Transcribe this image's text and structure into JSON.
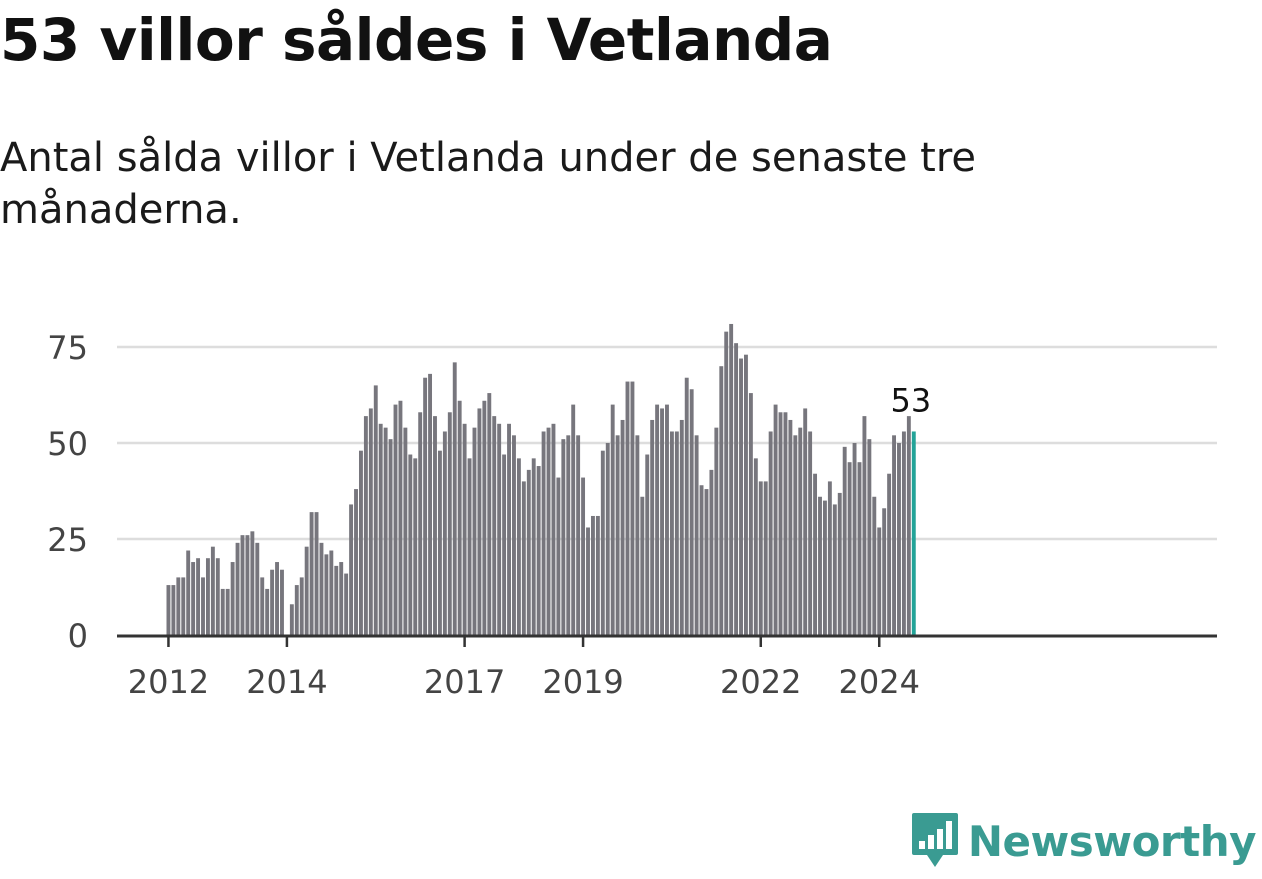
{
  "title": "53 villor såldes i Vetlanda",
  "subtitle": "Antal sålda villor i Vetlanda under de senaste tre månaderna.",
  "brand": {
    "name": "Newsworthy",
    "logo_icon": "newsworthy-bar-chart-icon",
    "color": "#3a9b92"
  },
  "chart_data": {
    "type": "bar",
    "title": "",
    "xlabel": "",
    "ylabel": "",
    "ylim": [
      0,
      80
    ],
    "y_ticks": [
      "0",
      "25",
      "50",
      "75"
    ],
    "grid": true,
    "x_ticks": [
      "2012",
      "2014",
      "2017",
      "2019",
      "2022",
      "2024"
    ],
    "colors": {
      "bar": "#77767d",
      "highlight": "#23a398",
      "grid": "#dddddd",
      "axis": "#333333"
    },
    "highlight_label": "53",
    "categories": [
      "2012-01",
      "2012-02",
      "2012-03",
      "2012-04",
      "2012-05",
      "2012-06",
      "2012-07",
      "2012-08",
      "2012-09",
      "2012-10",
      "2012-11",
      "2012-12",
      "2013-01",
      "2013-02",
      "2013-03",
      "2013-04",
      "2013-05",
      "2013-06",
      "2013-07",
      "2013-08",
      "2013-09",
      "2013-10",
      "2013-11",
      "2013-12",
      "2014-01",
      "2014-02",
      "2014-03",
      "2014-04",
      "2014-05",
      "2014-06",
      "2014-07",
      "2014-08",
      "2014-09",
      "2014-10",
      "2014-11",
      "2014-12",
      "2015-01",
      "2015-02",
      "2015-03",
      "2015-04",
      "2015-05",
      "2015-06",
      "2015-07",
      "2015-08",
      "2015-09",
      "2015-10",
      "2015-11",
      "2015-12",
      "2016-01",
      "2016-02",
      "2016-03",
      "2016-04",
      "2016-05",
      "2016-06",
      "2016-07",
      "2016-08",
      "2016-09",
      "2016-10",
      "2016-11",
      "2016-12",
      "2017-01",
      "2017-02",
      "2017-03",
      "2017-04",
      "2017-05",
      "2017-06",
      "2017-07",
      "2017-08",
      "2017-09",
      "2017-10",
      "2017-11",
      "2017-12",
      "2018-01",
      "2018-02",
      "2018-03",
      "2018-04",
      "2018-05",
      "2018-06",
      "2018-07",
      "2018-08",
      "2018-09",
      "2018-10",
      "2018-11",
      "2018-12",
      "2019-01",
      "2019-02",
      "2019-03",
      "2019-04",
      "2019-05",
      "2019-06",
      "2019-07",
      "2019-08",
      "2019-09",
      "2019-10",
      "2019-11",
      "2019-12",
      "2020-01",
      "2020-02",
      "2020-03",
      "2020-04",
      "2020-05",
      "2020-06",
      "2020-07",
      "2020-08",
      "2020-09",
      "2020-10",
      "2020-11",
      "2020-12",
      "2021-01",
      "2021-02",
      "2021-03",
      "2021-04",
      "2021-05",
      "2021-06",
      "2021-07",
      "2021-08",
      "2021-09",
      "2021-10",
      "2021-11",
      "2021-12",
      "2022-01",
      "2022-02",
      "2022-03",
      "2022-04",
      "2022-05",
      "2022-06",
      "2022-07",
      "2022-08",
      "2022-09",
      "2022-10",
      "2022-11",
      "2022-12",
      "2023-01",
      "2023-02",
      "2023-03",
      "2023-04",
      "2023-05",
      "2023-06",
      "2023-07",
      "2023-08",
      "2023-09",
      "2023-10",
      "2023-11",
      "2023-12",
      "2024-01",
      "2024-02",
      "2024-03",
      "2024-04",
      "2024-05",
      "2024-06",
      "2024-07",
      "2024-08"
    ],
    "values": [
      13,
      13,
      15,
      15,
      22,
      19,
      20,
      15,
      20,
      23,
      20,
      12,
      12,
      19,
      24,
      26,
      26,
      27,
      24,
      15,
      12,
      17,
      19,
      17,
      0,
      8,
      13,
      15,
      23,
      32,
      32,
      24,
      21,
      22,
      18,
      19,
      16,
      34,
      38,
      48,
      57,
      59,
      65,
      55,
      54,
      51,
      60,
      61,
      54,
      47,
      46,
      58,
      67,
      68,
      57,
      48,
      53,
      58,
      71,
      61,
      55,
      46,
      54,
      59,
      61,
      63,
      57,
      55,
      47,
      55,
      52,
      46,
      40,
      43,
      46,
      44,
      53,
      54,
      55,
      41,
      51,
      52,
      60,
      52,
      41,
      28,
      31,
      31,
      48,
      50,
      60,
      52,
      56,
      66,
      66,
      52,
      36,
      47,
      56,
      60,
      59,
      60,
      53,
      53,
      56,
      67,
      64,
      52,
      39,
      38,
      43,
      54,
      70,
      79,
      81,
      76,
      72,
      73,
      63,
      46,
      40,
      40,
      53,
      60,
      58,
      58,
      56,
      52,
      54,
      59,
      53,
      42,
      36,
      35,
      40,
      34,
      37,
      49,
      45,
      50,
      45,
      57,
      51,
      36,
      28,
      33,
      42,
      52,
      50,
      53,
      57,
      53
    ]
  }
}
